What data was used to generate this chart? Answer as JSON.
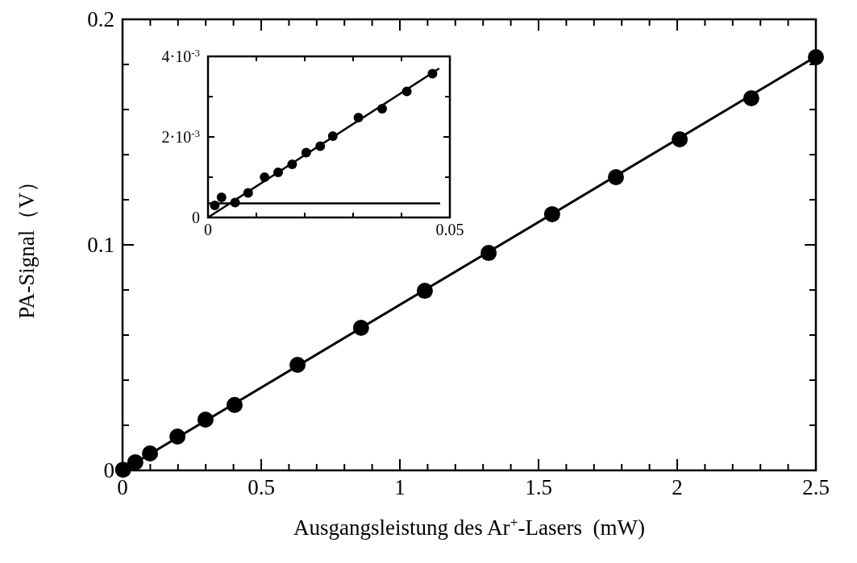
{
  "chart_data": [
    {
      "type": "scatter",
      "xlabel": "Ausgangsleistung des Ar$^{+}$-Lasers  (mW)",
      "ylabel": "PA-Signal（V）",
      "xlim": [
        0,
        2.5
      ],
      "ylim": [
        0,
        0.2
      ],
      "xticks": [
        0,
        {
          "value": 0.1,
          "label": null
        },
        {
          "value": 0.2,
          "label": null
        },
        {
          "value": 0.3,
          "label": null
        },
        {
          "value": 0.4,
          "label": null
        },
        0.5,
        {
          "value": 0.6,
          "label": null
        },
        {
          "value": 0.7,
          "label": null
        },
        {
          "value": 0.8,
          "label": null
        },
        {
          "value": 0.9,
          "label": null
        },
        1,
        {
          "value": 1.1,
          "label": null
        },
        {
          "value": 1.2,
          "label": null
        },
        {
          "value": 1.3,
          "label": null
        },
        {
          "value": 1.4,
          "label": null
        },
        1.5,
        {
          "value": 1.6,
          "label": null
        },
        {
          "value": 1.7,
          "label": null
        },
        {
          "value": 1.8,
          "label": null
        },
        {
          "value": 1.9,
          "label": null
        },
        2,
        {
          "value": 2.1,
          "label": null
        },
        {
          "value": 2.2,
          "label": null
        },
        {
          "value": 2.3,
          "label": null
        },
        {
          "value": 2.4,
          "label": null
        },
        2.5
      ],
      "yticks": [
        0,
        {
          "value": 0.02,
          "label": null
        },
        {
          "value": 0.04,
          "label": null
        },
        {
          "value": 0.06,
          "label": null
        },
        {
          "value": 0.08,
          "label": null
        },
        0.1,
        {
          "value": 0.12,
          "label": null
        },
        {
          "value": 0.14,
          "label": null
        },
        {
          "value": 0.16,
          "label": null
        },
        {
          "value": 0.18,
          "label": null
        },
        0.2
      ],
      "grid": false,
      "series": [
        {
          "marker": "circle",
          "color": "#000000",
          "x": [
            0.002,
            0.046,
            0.099,
            0.198,
            0.299,
            0.404,
            0.631,
            0.86,
            1.09,
            1.32,
            1.549,
            1.779,
            2.009,
            2.267,
            2.5
          ],
          "values": [
            0.0003,
            0.0036,
            0.0075,
            0.015,
            0.0225,
            0.029,
            0.0468,
            0.0632,
            0.0796,
            0.0964,
            0.1136,
            0.13,
            0.1468,
            0.165,
            0.1832
          ]
        },
        {
          "type": "line",
          "marker": "none",
          "color": "#000000",
          "x": [
            0,
            2.5
          ],
          "values": [
            0,
            0.1835
          ]
        }
      ]
    },
    {
      "type": "scatter",
      "xlim": [
        0,
        0.05
      ],
      "ylim": [
        0,
        0.004
      ],
      "xticks": [
        0,
        {
          "value": 0.01,
          "label": null
        },
        {
          "value": 0.02,
          "label": null
        },
        {
          "value": 0.03,
          "label": null
        },
        {
          "value": 0.04,
          "label": null
        },
        0.05
      ],
      "yticks": [
        0,
        {
          "value": 0.001,
          "label": null
        },
        {
          "value": 0.002,
          "label": "2·10$^{-3}$"
        },
        {
          "value": 0.003,
          "label": null
        },
        {
          "value": 0.004,
          "label": "4·10$^{-3}$"
        }
      ],
      "grid": false,
      "ref_lines": [
        {
          "axis": "y",
          "value": 0.00035,
          "label": null
        }
      ],
      "series": [
        {
          "marker": "circle",
          "color": "#000000",
          "x": [
            0.0014,
            0.0028,
            0.0056,
            0.0083,
            0.0117,
            0.0145,
            0.0174,
            0.0203,
            0.0232,
            0.0258,
            0.0311,
            0.036,
            0.0411,
            0.0464
          ],
          "values": [
            0.0003,
            0.0005,
            0.00037,
            0.00061,
            0.001,
            0.00112,
            0.00132,
            0.00161,
            0.00177,
            0.00202,
            0.00248,
            0.0027,
            0.00313,
            0.00357
          ]
        },
        {
          "type": "line",
          "marker": "none",
          "color": "#000000",
          "x": [
            0,
            0.0478
          ],
          "values": [
            0,
            0.0037
          ]
        }
      ]
    }
  ]
}
